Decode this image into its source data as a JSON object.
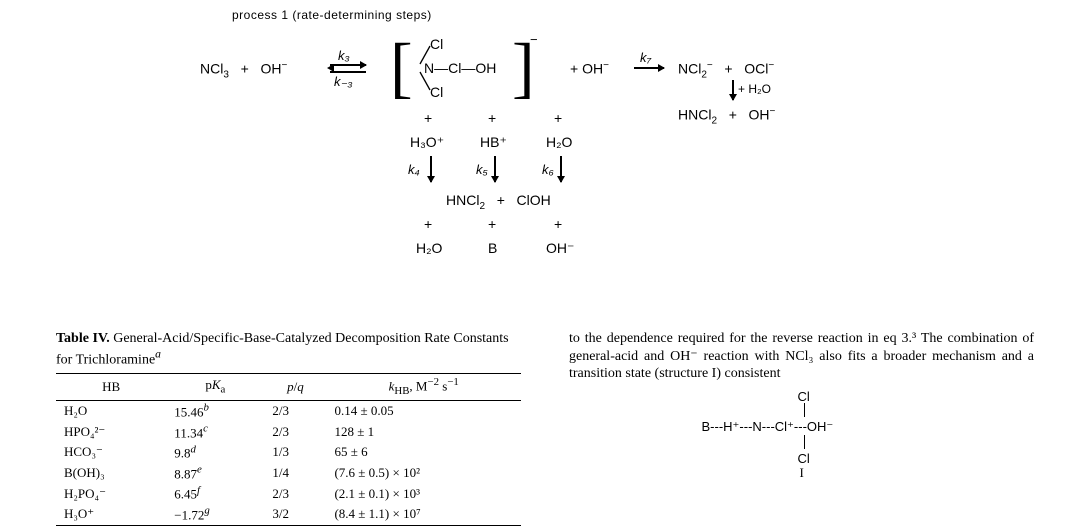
{
  "scheme": {
    "title": "process 1 (rate-determining steps)",
    "reactant_left": {
      "a": "NCl",
      "a_sub": "3",
      "plus": "+",
      "b": "OH",
      "b_sup": "−"
    },
    "k3": "k₃",
    "k_minus3": "k₋₃",
    "bracket_minus": "−",
    "intermediate": {
      "cl_top": "Cl",
      "cl_bot": "Cl",
      "center": "N—Cl—OH"
    },
    "plus_oh": "+  OH",
    "plus_oh_sup": "−",
    "k7": "k₇",
    "prod_right": {
      "a": "NCl",
      "a_sub": "2",
      "a_sup": "−",
      "plus": "+",
      "b": "OCl",
      "b_sup": "−"
    },
    "plus_h2o": "+ H₂O",
    "row2": {
      "a": "HNCl",
      "a_sub": "2",
      "plus": "+",
      "b": "OH",
      "b_sup": "−"
    },
    "col_below": {
      "plus": "+",
      "h3o": "H₃O⁺",
      "hb": "HB⁺",
      "h2o": "H₂O",
      "k4": "k₄",
      "k5": "k₅",
      "k6": "k₆"
    },
    "prodline": {
      "a": "HNCl",
      "a_sub": "2",
      "plus": "+",
      "b": "ClOH"
    },
    "bottom": {
      "h2o": "H₂O",
      "B": "B",
      "oh": "OH⁻"
    }
  },
  "table": {
    "title_a": "Table IV.",
    "title_b": "General-Acid/Specific-Base-Catalyzed Decomposition Rate Constants for Trichloramine",
    "title_sup": "a",
    "headers": {
      "c1": "HB",
      "c2": "pKₐ",
      "c3": "p/q",
      "c4": "k_HB, M⁻² s⁻¹"
    },
    "rows": [
      {
        "hb": "H₂O",
        "pka": "15.46",
        "pka_sup": "b",
        "pq": "2/3",
        "k": "0.14 ± 0.05"
      },
      {
        "hb": "HPO₄²⁻",
        "pka": "11.34",
        "pka_sup": "c",
        "pq": "2/3",
        "k": "128 ± 1"
      },
      {
        "hb": "HCO₃⁻",
        "pka": "9.8",
        "pka_sup": "d",
        "pq": "1/3",
        "k": "65 ± 6"
      },
      {
        "hb": "B(OH)₃",
        "pka": "8.87",
        "pka_sup": "e",
        "pq": "1/4",
        "k": "(7.6 ± 0.5) × 10²"
      },
      {
        "hb": "H₂PO₄⁻",
        "pka": "6.45",
        "pka_sup": "f",
        "pq": "2/3",
        "k": "(2.1 ± 0.1) × 10³"
      },
      {
        "hb": "H₃O⁺",
        "pka": "−1.72",
        "pka_sup": "g",
        "pq": "3/2",
        "k": "(8.4 ± 1.1) × 10⁷"
      }
    ]
  },
  "right_text": "to the dependence required for the reverse reaction in eq 3.³  The combination of general-acid and OH⁻ reaction with NCl₃ also fits a broader mechanism and a transition state (structure I) consistent",
  "structure": {
    "row": "B---H⁺---N---Cl⁺---OH⁻",
    "cl_top": "Cl",
    "cl_bot": "Cl",
    "label": "I"
  }
}
